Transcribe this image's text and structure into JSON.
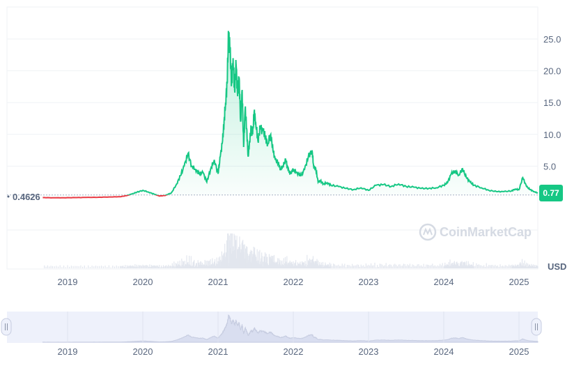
{
  "chart_data": {
    "type": "line",
    "currency": "USD",
    "watermark": "CoinMarketCap",
    "reference_price": 0.4626,
    "reference_label": "0.4626",
    "current_price": 0.77,
    "current_label": "0.77",
    "ylim": [
      0,
      29
    ],
    "yticks": [
      "5.0",
      "10.0",
      "15.0",
      "20.0",
      "25.0"
    ],
    "xticks": [
      "2019",
      "2020",
      "2021",
      "2022",
      "2023",
      "2024",
      "2025"
    ],
    "navigator_xticks": [
      "2019",
      "2020",
      "2021",
      "2022",
      "2023",
      "2024",
      "2025"
    ],
    "line_color_up": "#16c784",
    "line_color_down": "#ea3943",
    "series": [
      {
        "x": [
          2018.67,
          2018.8,
          2018.95,
          2019.1,
          2019.25,
          2019.4,
          2019.55,
          2019.7,
          2019.78,
          2019.85,
          2019.92,
          2020.0,
          2020.08,
          2020.15,
          2020.22,
          2020.3,
          2020.38,
          2020.45,
          2020.5,
          2020.55,
          2020.6,
          2020.65,
          2020.7,
          2020.75,
          2020.8,
          2020.85,
          2020.9,
          2020.95,
          2021.0,
          2021.03,
          2021.06,
          2021.08,
          2021.1,
          2021.12,
          2021.14,
          2021.16,
          2021.18,
          2021.2,
          2021.22,
          2021.24,
          2021.26,
          2021.28,
          2021.3,
          2021.32,
          2021.34,
          2021.36,
          2021.38,
          2021.4,
          2021.42,
          2021.44,
          2021.46,
          2021.48,
          2021.5,
          2021.53,
          2021.56,
          2021.6,
          2021.63,
          2021.66,
          2021.7,
          2021.73,
          2021.76,
          2021.8,
          2021.83,
          2021.86,
          2021.9,
          2021.93,
          2021.96,
          2022.0,
          2022.05,
          2022.1,
          2022.15,
          2022.2,
          2022.25,
          2022.27,
          2022.3,
          2022.33,
          2022.36,
          2022.4,
          2022.45,
          2022.5,
          2022.6,
          2022.7,
          2022.8,
          2022.9,
          2023.0,
          2023.1,
          2023.2,
          2023.3,
          2023.4,
          2023.5,
          2023.6,
          2023.7,
          2023.8,
          2023.9,
          2024.0,
          2024.05,
          2024.1,
          2024.15,
          2024.2,
          2024.25,
          2024.3,
          2024.35,
          2024.4,
          2024.5,
          2024.6,
          2024.7,
          2024.8,
          2024.9,
          2024.95,
          2025.0,
          2025.05,
          2025.1,
          2025.15,
          2025.2,
          2025.25
        ],
        "y": [
          0.05,
          0.03,
          0.03,
          0.05,
          0.08,
          0.1,
          0.15,
          0.2,
          0.35,
          0.6,
          0.9,
          1.2,
          0.9,
          0.6,
          0.3,
          0.4,
          0.8,
          2.2,
          3.5,
          5.0,
          7.0,
          5.0,
          4.5,
          3.8,
          4.0,
          2.5,
          4.5,
          6.0,
          3.8,
          6.5,
          9.0,
          12.0,
          15.0,
          18.0,
          26.0,
          23.0,
          18.0,
          22.0,
          17.0,
          21.0,
          16.0,
          19.0,
          12.0,
          17.0,
          8.0,
          14.0,
          11.0,
          6.5,
          9.0,
          11.0,
          10.0,
          13.5,
          12.0,
          9.0,
          11.0,
          10.5,
          9.5,
          8.5,
          10.0,
          7.5,
          6.0,
          5.5,
          4.5,
          5.0,
          6.0,
          4.5,
          3.8,
          4.5,
          4.0,
          3.5,
          4.5,
          6.5,
          7.5,
          5.0,
          4.5,
          2.5,
          2.7,
          2.2,
          2.4,
          2.0,
          1.8,
          1.5,
          1.3,
          1.6,
          1.2,
          2.0,
          2.1,
          1.8,
          2.2,
          1.8,
          1.7,
          1.5,
          1.5,
          1.6,
          2.0,
          2.4,
          3.8,
          4.2,
          3.6,
          4.6,
          3.2,
          2.5,
          2.0,
          1.6,
          1.2,
          1.0,
          1.0,
          1.1,
          1.4,
          1.3,
          3.2,
          1.8,
          1.3,
          1.0,
          0.77
        ]
      }
    ]
  }
}
